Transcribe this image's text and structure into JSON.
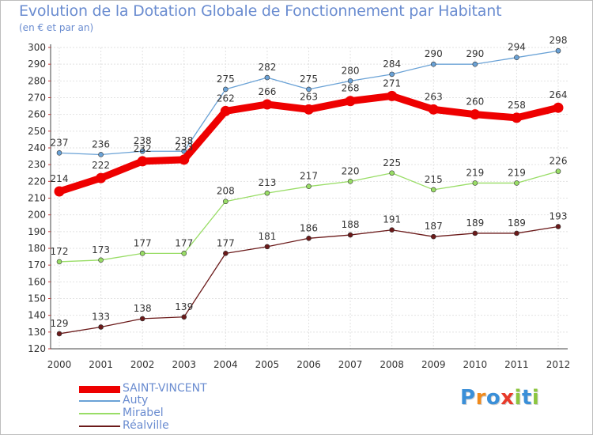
{
  "chart_data": {
    "type": "line",
    "title": "Evolution de la Dotation Globale de Fonctionnement par Habitant",
    "subtitle": "(en € et par an)",
    "xlabel": "",
    "ylabel": "",
    "ylim": [
      120,
      300
    ],
    "ytick_step": 10,
    "grid": true,
    "legend_position": "bottom-left",
    "categories": [
      "2000",
      "2001",
      "2002",
      "2003",
      "2004",
      "2005",
      "2006",
      "2007",
      "2008",
      "2009",
      "2010",
      "2011",
      "2012"
    ],
    "series": [
      {
        "name": "SAINT-VINCENT",
        "color": "#ee0000",
        "values": [
          214,
          222,
          232,
          233,
          262,
          266,
          263,
          268,
          271,
          263,
          260,
          258,
          264
        ]
      },
      {
        "name": "Auty",
        "color": "#6aa2d6",
        "values": [
          237,
          236,
          238,
          238,
          275,
          282,
          275,
          280,
          284,
          290,
          290,
          294,
          298
        ]
      },
      {
        "name": "Mirabel",
        "color": "#99dd66",
        "values": [
          172,
          173,
          177,
          177,
          208,
          213,
          217,
          220,
          225,
          215,
          219,
          219,
          226
        ]
      },
      {
        "name": "Réalville",
        "color": "#6b1a1a",
        "values": [
          129,
          133,
          138,
          139,
          177,
          181,
          186,
          188,
          191,
          187,
          189,
          189,
          193
        ]
      }
    ]
  },
  "logo": {
    "letters": [
      "P",
      "r",
      "o",
      "x",
      "i",
      "t",
      "i"
    ],
    "colors": [
      "#3a8fd8",
      "#f08a1c",
      "#3a8fd8",
      "#e83a2a",
      "#8cc63f",
      "#3a8fd8",
      "#8cc63f"
    ]
  }
}
